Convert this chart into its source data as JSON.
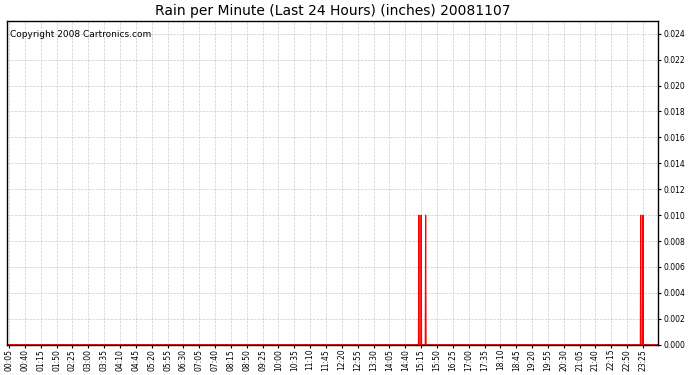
{
  "title": "Rain per Minute (Last 24 Hours) (inches) 20081107",
  "copyright_text": "Copyright 2008 Cartronics.com",
  "background_color": "#ffffff",
  "plot_bg_color": "#ffffff",
  "line_color": "#ff0000",
  "grid_color": "#c0c0c0",
  "ylim": [
    0.0,
    0.025
  ],
  "yticks": [
    0.0,
    0.002,
    0.004,
    0.006,
    0.008,
    0.01,
    0.012,
    0.014,
    0.016,
    0.018,
    0.02,
    0.022,
    0.024
  ],
  "total_minutes": 1440,
  "xtick_start": 5,
  "xtick_interval_minutes": 35,
  "spike_times_minutes": [
    910,
    915,
    925,
    1400,
    1405
  ],
  "spike_values": [
    0.01,
    0.01,
    0.01,
    0.01,
    0.01
  ],
  "title_fontsize": 10,
  "tick_fontsize": 5.5,
  "copyright_fontsize": 6.5
}
